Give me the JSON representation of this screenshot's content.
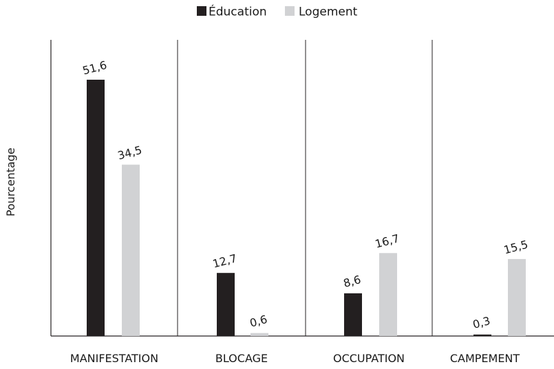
{
  "chart_data": {
    "type": "bar",
    "categories": [
      "MANIFESTATION",
      "BLOCAGE",
      "OCCUPATION",
      "CAMPEMENT"
    ],
    "series": [
      {
        "name": "Éducation",
        "values": [
          51.6,
          12.7,
          8.6,
          0.3
        ],
        "labels": [
          "51,6",
          "12,7",
          "8,6",
          "0,3"
        ],
        "color": "#231f20"
      },
      {
        "name": "Logement",
        "values": [
          34.5,
          0.6,
          16.7,
          15.5
        ],
        "labels": [
          "34,5",
          "0,6",
          "16,7",
          "15,5"
        ],
        "color": "#d1d2d4"
      }
    ],
    "title": "",
    "xlabel": "",
    "ylabel": "Pourcentage",
    "ylim": [
      0,
      60
    ],
    "grid": false,
    "legend_position": "top-center",
    "category_separators": true
  }
}
